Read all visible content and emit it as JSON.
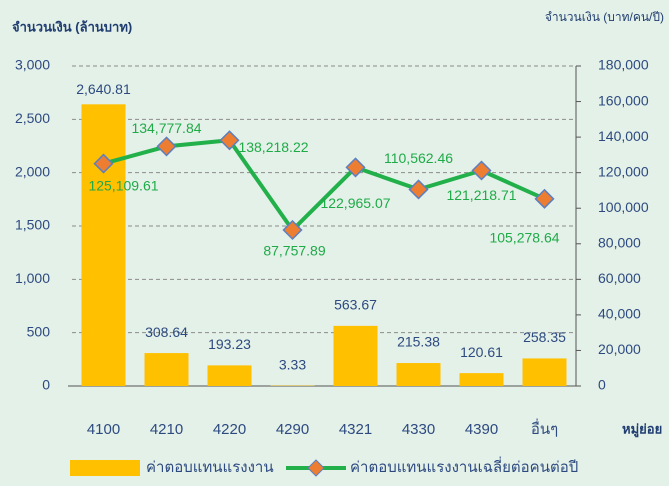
{
  "chart_data": {
    "type": "bar_line",
    "y_label": "จำนวนเงิน (ล้านบาท)",
    "y2_label": "จำนวนเงิน (บาท/คน/ปี)",
    "x_label": "หมู่ย่อย",
    "categories": [
      "4100",
      "4210",
      "4220",
      "4290",
      "4321",
      "4330",
      "4390",
      "อื่นๆ"
    ],
    "series": [
      {
        "name": "ค่าตอบแทนแรงงาน",
        "type": "bar",
        "color": "#ffc000",
        "values": [
          2640.81,
          308.64,
          193.23,
          3.33,
          563.67,
          215.38,
          120.61,
          258.35
        ],
        "value_labels": [
          "2,640.81",
          "308.64",
          "193.23",
          "3.33",
          "563.67",
          "215.38",
          "120.61",
          "258.35"
        ]
      },
      {
        "name": "ค่าตอบแทนแรงงานเฉลี่ยต่อคนต่อปี",
        "type": "line",
        "axis": "y2",
        "color": "#22b04b",
        "marker_color": "#ed7d31",
        "values": [
          125109.61,
          134777.84,
          138218.22,
          87757.89,
          122965.07,
          110562.46,
          121218.71,
          105278.64
        ],
        "value_labels": [
          "125,109.61",
          "134,777.84",
          "138,218.22",
          "87,757.89",
          "122,965.07",
          "110,562.46",
          "121,218.71",
          "105,278.64"
        ]
      }
    ],
    "ylim": [
      0,
      3000
    ],
    "yticks": [
      0,
      500,
      {
        "value": 1000,
        "label": "1,000"
      },
      {
        "value": 1500,
        "label": "1,500"
      },
      {
        "value": 2000,
        "label": "2,000"
      },
      {
        "value": 2500,
        "label": "2,500"
      },
      {
        "value": 3000,
        "label": "3,000"
      }
    ],
    "y2lim": [
      0,
      180000
    ],
    "y2ticks": [
      0,
      {
        "value": 20000,
        "label": "20,000"
      },
      {
        "value": 40000,
        "label": "40,000"
      },
      {
        "value": 60000,
        "label": "60,000"
      },
      {
        "value": 80000,
        "label": "80,000"
      },
      {
        "value": 100000,
        "label": "100,000"
      },
      {
        "value": 120000,
        "label": "120,000"
      },
      {
        "value": 140000,
        "label": "140,000"
      },
      {
        "value": 160000,
        "label": "160,000"
      },
      {
        "value": 180000,
        "label": "180,000"
      }
    ],
    "grid": true,
    "legend": "bottom"
  }
}
